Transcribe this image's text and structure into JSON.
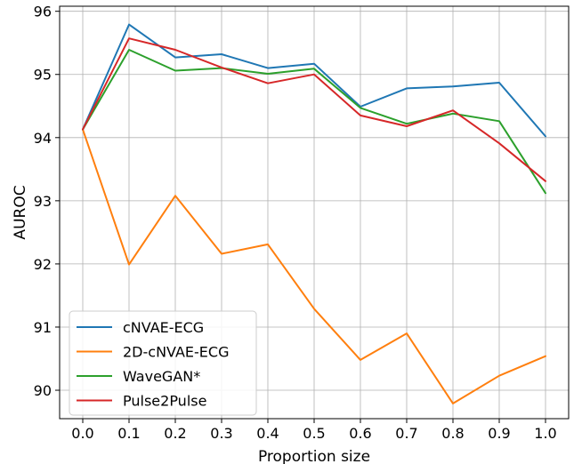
{
  "chart_data": {
    "type": "line",
    "xlabel": "Proportion size",
    "ylabel": "AUROC",
    "x": [
      0.0,
      0.1,
      0.2,
      0.3,
      0.4,
      0.5,
      0.6,
      0.7,
      0.8,
      0.9,
      1.0
    ],
    "x_tick_labels": [
      "0.0",
      "0.1",
      "0.2",
      "0.3",
      "0.4",
      "0.5",
      "0.6",
      "0.7",
      "0.8",
      "0.9",
      "1.0"
    ],
    "y_ticks": [
      90,
      91,
      92,
      93,
      94,
      95,
      96
    ],
    "xlim": [
      -0.05,
      1.05
    ],
    "ylim": [
      89.55,
      96.08
    ],
    "grid": true,
    "legend_position": "lower-left",
    "series": [
      {
        "name": "cNVAE-ECG",
        "color": "#1f77b4",
        "values": [
          94.13,
          95.79,
          95.27,
          95.32,
          95.1,
          95.17,
          94.49,
          94.78,
          94.81,
          94.87,
          94.02
        ]
      },
      {
        "name": "2D-cNVAE-ECG",
        "color": "#ff7f0e",
        "values": [
          94.13,
          91.99,
          93.08,
          92.16,
          92.31,
          91.29,
          90.48,
          90.9,
          89.79,
          90.23,
          90.54
        ]
      },
      {
        "name": "WaveGAN*",
        "color": "#2ca02c",
        "values": [
          94.13,
          95.39,
          95.06,
          95.1,
          95.01,
          95.09,
          94.47,
          94.22,
          94.38,
          94.26,
          93.12
        ]
      },
      {
        "name": "Pulse2Pulse",
        "color": "#d62728",
        "values": [
          94.13,
          95.57,
          95.39,
          95.11,
          94.86,
          95.0,
          94.35,
          94.18,
          94.43,
          93.91,
          93.31
        ]
      }
    ]
  }
}
